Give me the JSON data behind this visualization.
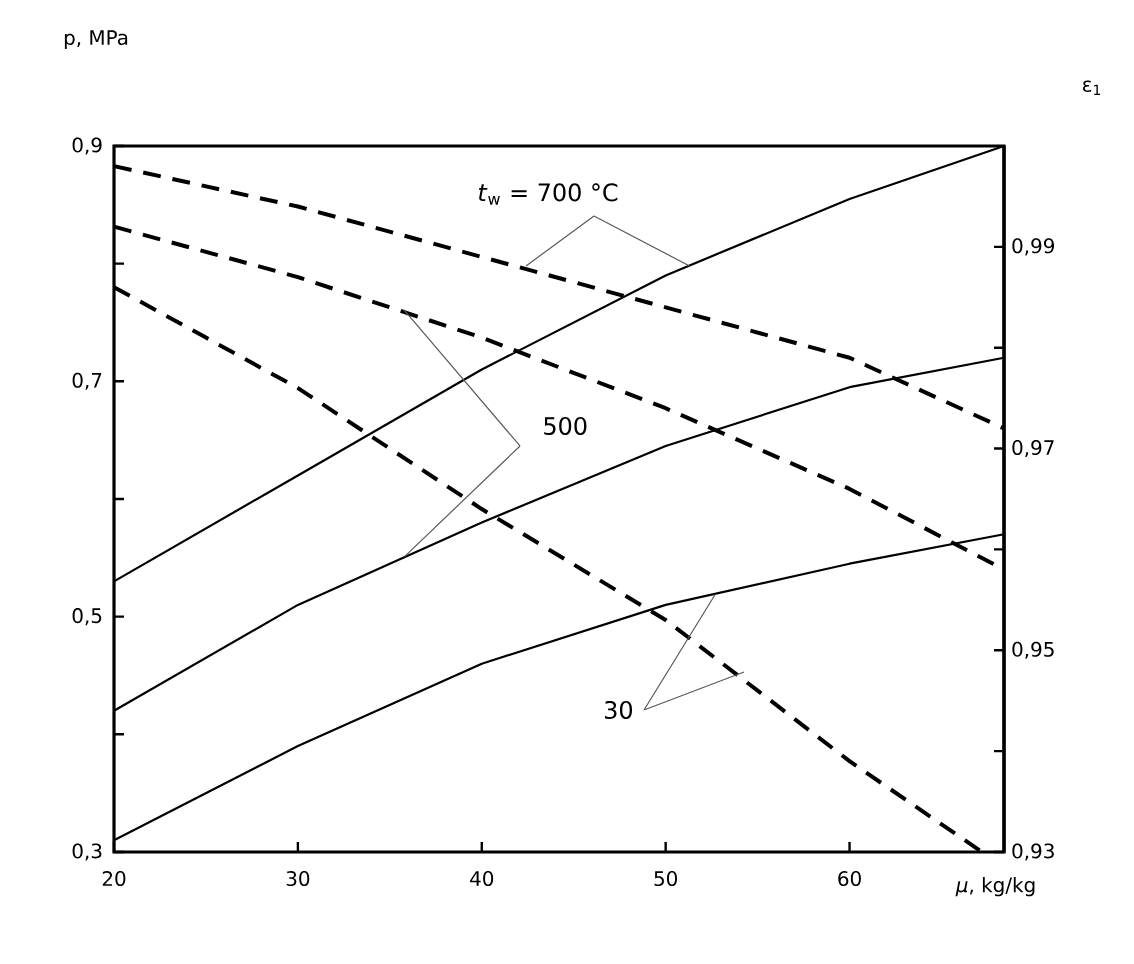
{
  "chart_data": {
    "type": "line",
    "xlabel": "*μ*,  kg/kg",
    "ylabel": "p, MPa",
    "y2label": "ε$_{1}$",
    "xlim": [
      20,
      68.4
    ],
    "xticks": [
      20,
      30,
      40,
      50,
      60
    ],
    "ylim": [
      0.3,
      0.9
    ],
    "yticks": [
      {
        "value": 0.3,
        "label": "0,3"
      },
      {
        "value": 0.4,
        "label": null
      },
      {
        "value": 0.5,
        "label": "0,5"
      },
      {
        "value": 0.6,
        "label": null
      },
      {
        "value": 0.7,
        "label": "0,7"
      },
      {
        "value": 0.8,
        "label": null
      },
      {
        "value": 0.9,
        "label": "0,9"
      }
    ],
    "y2lim": [
      0.93,
      1.0
    ],
    "y2ticks": [
      {
        "value": 0.93,
        "label": "0,93"
      },
      {
        "value": 0.94,
        "label": null
      },
      {
        "value": 0.95,
        "label": "0,95"
      },
      {
        "value": 0.96,
        "label": null
      },
      {
        "value": 0.97,
        "label": "0,97"
      },
      {
        "value": 0.98,
        "label": null
      },
      {
        "value": 0.99,
        "label": "0,99"
      }
    ],
    "x": [
      20,
      30,
      40,
      50,
      60,
      68.4
    ],
    "series": [
      {
        "color": "#000000",
        "line_style": "solid",
        "values": [
          0.53,
          0.62,
          0.71,
          0.79,
          0.855,
          0.9
        ]
      },
      {
        "color": "#000000",
        "line_style": "solid",
        "values": [
          0.42,
          0.51,
          0.58,
          0.645,
          0.695,
          0.72
        ]
      },
      {
        "color": "#000000",
        "line_style": "solid",
        "values": [
          0.31,
          0.39,
          0.46,
          0.51,
          0.545,
          0.57
        ]
      },
      {
        "color": "#000000",
        "line_style": "dashed",
        "axis": "y2",
        "values": [
          0.998,
          0.994,
          0.989,
          0.984,
          0.979,
          0.972
        ]
      },
      {
        "color": "#000000",
        "line_style": "dashed",
        "axis": "y2",
        "values": [
          0.992,
          0.987,
          0.981,
          0.974,
          0.966,
          0.958
        ]
      },
      {
        "color": "#000000",
        "line_style": "dashed",
        "axis": "y2",
        "x": [
          20,
          25,
          30,
          40,
          50,
          60,
          67.2
        ],
        "values": [
          0.986,
          0.981,
          0.976,
          0.964,
          0.953,
          0.939,
          0.93
        ]
      }
    ],
    "annotations": [
      {
        "text": "*t*$_{w}$ = 700 °C",
        "x": 51.3,
        "y": 0.798
      },
      {
        "text": "500",
        "x": 35.8,
        "y": 0.551
      },
      {
        "text": "30",
        "x": 52.7,
        "y": 0.519
      }
    ]
  }
}
